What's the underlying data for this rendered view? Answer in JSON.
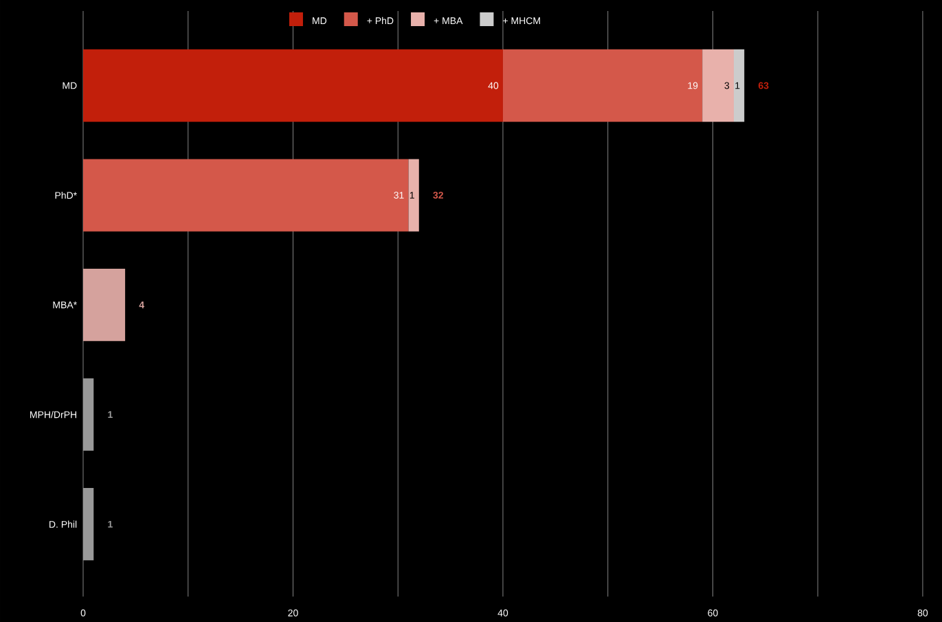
{
  "chart_data": {
    "type": "bar",
    "orientation": "horizontal",
    "stacked": true,
    "categories": [
      "MD",
      "PhD*",
      "MBA*",
      "MPH/DrPH",
      "D. Phil"
    ],
    "series": [
      {
        "name": "MD",
        "color": "#c21f0b",
        "values": [
          40,
          null,
          null,
          null,
          null
        ],
        "value_labels": [
          "40",
          null,
          null,
          null,
          null
        ]
      },
      {
        "name": "+ PhD",
        "color": "#d4584a",
        "values": [
          19,
          31,
          null,
          null,
          null
        ],
        "value_labels": [
          "19",
          "31",
          null,
          null,
          null
        ]
      },
      {
        "name": "+ MBA",
        "color": "#e8b1ab",
        "colors": [
          "#e8b1ab",
          "#e8b1ab",
          "#d5a29d",
          "#e8b1ab",
          "#e8b1ab"
        ],
        "values": [
          3,
          1,
          4,
          null,
          null
        ],
        "value_labels": [
          "3",
          "1",
          null,
          null,
          null
        ]
      },
      {
        "name": "+ MHCM",
        "color": "#cccccc",
        "values": [
          1,
          null,
          null,
          null,
          null
        ],
        "value_labels": [
          "1",
          null,
          null,
          null,
          null
        ]
      },
      {
        "color": "#999999",
        "values": [
          null,
          null,
          null,
          1,
          1
        ]
      }
    ],
    "totals": [
      "63",
      "32",
      "4",
      "1",
      "1"
    ],
    "xlim": [
      0,
      80
    ],
    "xticks": [
      0,
      {
        "value": 10,
        "label": null
      },
      20,
      {
        "value": 30,
        "label": null
      },
      40,
      {
        "value": 50,
        "label": null
      },
      60,
      {
        "value": 70,
        "label": null
      },
      80
    ],
    "grid": "x",
    "legend": "top"
  }
}
